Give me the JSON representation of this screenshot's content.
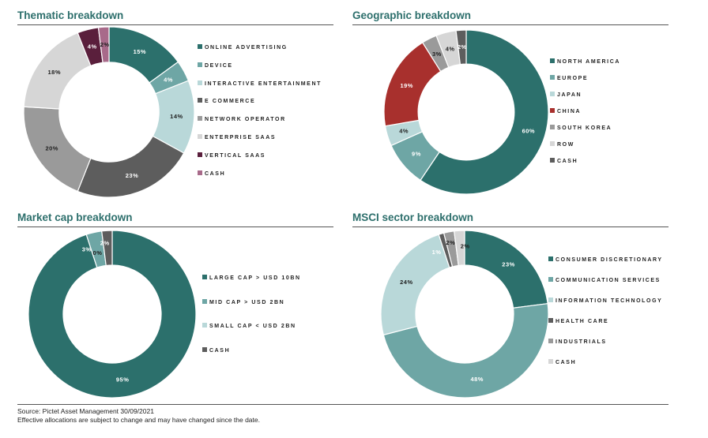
{
  "chart_data": [
    {
      "type": "pie",
      "title": "Thematic breakdown",
      "categories": [
        "ONLINE ADVERTISING",
        "DEVICE",
        "INTERACTIVE ENTERTAINMENT",
        "E COMMERCE",
        "NETWORK OPERATOR",
        "ENTERPRISE SAAS",
        "VERTICAL SAAS",
        "CASH"
      ],
      "values": [
        15,
        4,
        14,
        23,
        20,
        18,
        4,
        2
      ],
      "data_labels": [
        "15%",
        "4%",
        "14%",
        "23%",
        "20%",
        "18%",
        "4%",
        "2%"
      ],
      "slice_order": [
        0,
        1,
        2,
        3,
        4,
        5,
        6,
        7
      ],
      "colors": [
        "#2c706c",
        "#6ea6a5",
        "#b9d8d9",
        "#5d5d5d",
        "#9a9a9a",
        "#d6d6d6",
        "#5a1f3c",
        "#a86a8a"
      ],
      "legend_position": "right"
    },
    {
      "type": "pie",
      "title": "Geographic breakdown",
      "categories": [
        "NORTH AMERICA",
        "EUROPE",
        "JAPAN",
        "CHINA",
        "SOUTH KOREA",
        "ROW",
        "CASH"
      ],
      "values": [
        60,
        9,
        4,
        19,
        3,
        4,
        2
      ],
      "data_labels": [
        "60%",
        "9%",
        "4%",
        "19%",
        "3%",
        "4%",
        "2%"
      ],
      "slice_order": [
        0,
        1,
        2,
        3,
        4,
        5,
        6
      ],
      "colors": [
        "#2c706c",
        "#6ea6a5",
        "#b9d8d9",
        "#a8302d",
        "#9a9a9a",
        "#d6d6d6",
        "#5d5d5d"
      ],
      "legend_position": "right"
    },
    {
      "type": "pie",
      "title": "Market cap breakdown",
      "categories": [
        "LARGE CAP > USD 10BN",
        "MID CAP > USD 2BN",
        "SMALL CAP < USD 2BN",
        "CASH"
      ],
      "values": [
        95,
        3,
        0,
        2
      ],
      "data_labels": [
        "95%",
        "3%",
        "0%",
        "2%"
      ],
      "slice_order": [
        0,
        1,
        2,
        3
      ],
      "colors": [
        "#2c706c",
        "#6ea6a5",
        "#b9d8d9",
        "#5d5d5d"
      ],
      "legend_position": "right"
    },
    {
      "type": "pie",
      "title": "MSCI sector breakdown",
      "categories": [
        "CONSUMER DISCRETIONARY",
        "COMMUNICATION SERVICES",
        "INFORMATION TECHNOLOGY",
        "HEALTH CARE",
        "INDUSTRIALS",
        "CASH"
      ],
      "values": [
        23,
        48,
        24,
        1,
        2,
        2
      ],
      "data_labels": [
        "23%",
        "48%",
        "24%",
        "1%",
        "2%",
        "2%"
      ],
      "slice_order": [
        0,
        1,
        2,
        3,
        4,
        5
      ],
      "colors": [
        "#2c706c",
        "#6ea6a5",
        "#b9d8d9",
        "#5d5d5d",
        "#9a9a9a",
        "#d6d6d6"
      ],
      "legend_position": "right"
    }
  ],
  "footnote": {
    "source": "Source: Pictet Asset Management 30/09/2021",
    "disclaimer": "Effective allocations are subject to change and may have changed since the date."
  }
}
